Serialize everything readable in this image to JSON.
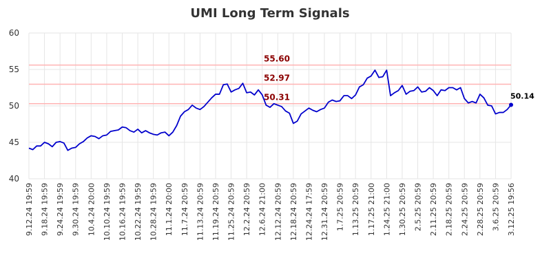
{
  "chart_data": {
    "type": "line",
    "title": "UMI Long Term Signals",
    "categories": [
      "9.12.24 19:59",
      null,
      null,
      null,
      "9.18.24 19:59",
      null,
      null,
      null,
      "9.24.24 19:59",
      null,
      null,
      null,
      "9.30.24 19:59",
      null,
      null,
      null,
      "10.4.24 20:00",
      null,
      null,
      null,
      "10.10.24 19:59",
      null,
      null,
      null,
      "10.16.24 19:59",
      null,
      null,
      null,
      "10.22.24 19:59",
      null,
      null,
      null,
      "10.28.24 19:59",
      null,
      null,
      null,
      "11.1.24 20:00",
      null,
      null,
      null,
      "11.7.24 20:59",
      null,
      null,
      null,
      "11.13.24 20:59",
      null,
      null,
      null,
      "11.19.24 20:59",
      null,
      null,
      null,
      "11.25.24 20:59",
      null,
      null,
      null,
      "12.2.24 20:59",
      null,
      null,
      null,
      "12.6.24 21:00",
      null,
      null,
      null,
      "12.12.24 20:59",
      null,
      null,
      null,
      "12.18.24 20:59",
      null,
      null,
      null,
      "12.24.24 17:59",
      null,
      null,
      null,
      "12.31.24 20:59",
      null,
      null,
      null,
      "1.7.25 20:59",
      null,
      null,
      null,
      "1.13.25 20:59",
      null,
      null,
      null,
      "1.17.25 21:00",
      null,
      null,
      null,
      "1.24.25 21:00",
      null,
      null,
      null,
      "1.30.25 20:59",
      null,
      null,
      null,
      "2.5.25 20:59",
      null,
      null,
      null,
      "2.11.25 20:59",
      null,
      null,
      null,
      "2.18.25 20:59",
      null,
      null,
      null,
      "2.24.25 20:59",
      null,
      null,
      null,
      "2.28.25 20:59",
      null,
      null,
      null,
      "3.6.25 20:59",
      null,
      null,
      null,
      "3.12.25 19:56"
    ],
    "values": [
      44.2,
      44.0,
      44.5,
      44.5,
      45.0,
      44.8,
      44.4,
      45.0,
      45.1,
      44.9,
      43.9,
      44.2,
      44.3,
      44.8,
      45.1,
      45.6,
      45.9,
      45.8,
      45.5,
      45.9,
      46.0,
      46.5,
      46.6,
      46.7,
      47.1,
      47.0,
      46.6,
      46.4,
      46.8,
      46.3,
      46.6,
      46.3,
      46.1,
      46.0,
      46.3,
      46.4,
      45.9,
      46.4,
      47.3,
      48.6,
      49.2,
      49.5,
      50.1,
      49.7,
      49.5,
      49.9,
      50.5,
      51.1,
      51.6,
      51.6,
      52.9,
      53.0,
      51.9,
      52.2,
      52.4,
      53.1,
      51.8,
      51.9,
      51.5,
      52.2,
      51.5,
      50.1,
      49.8,
      50.3,
      50.1,
      49.9,
      49.3,
      49.0,
      47.6,
      47.9,
      48.9,
      49.3,
      49.7,
      49.4,
      49.2,
      49.5,
      49.7,
      50.5,
      50.8,
      50.6,
      50.7,
      51.4,
      51.4,
      51.0,
      51.5,
      52.6,
      52.9,
      53.8,
      54.1,
      54.9,
      53.9,
      54.0,
      54.9,
      51.4,
      51.8,
      52.1,
      52.8,
      51.6,
      52.0,
      52.1,
      52.6,
      51.9,
      52.0,
      52.5,
      52.1,
      51.4,
      52.2,
      52.1,
      52.5,
      52.5,
      52.2,
      52.5,
      51.0,
      50.4,
      50.6,
      50.4,
      51.6,
      51.1,
      50.1,
      50.0,
      48.9,
      49.1,
      49.1,
      49.5,
      50.14
    ],
    "color": "#0000cc",
    "ylim": [
      40,
      60
    ],
    "yticks": [
      40,
      45,
      50,
      55,
      60
    ],
    "grid": true,
    "hlines": [
      {
        "value": 55.6,
        "label": "55.60"
      },
      {
        "value": 52.97,
        "label": "52.97"
      },
      {
        "value": 50.31,
        "label": "50.31"
      }
    ],
    "hline_color": "#ffb3b3",
    "hline_label_color": "#8b0000"
  }
}
